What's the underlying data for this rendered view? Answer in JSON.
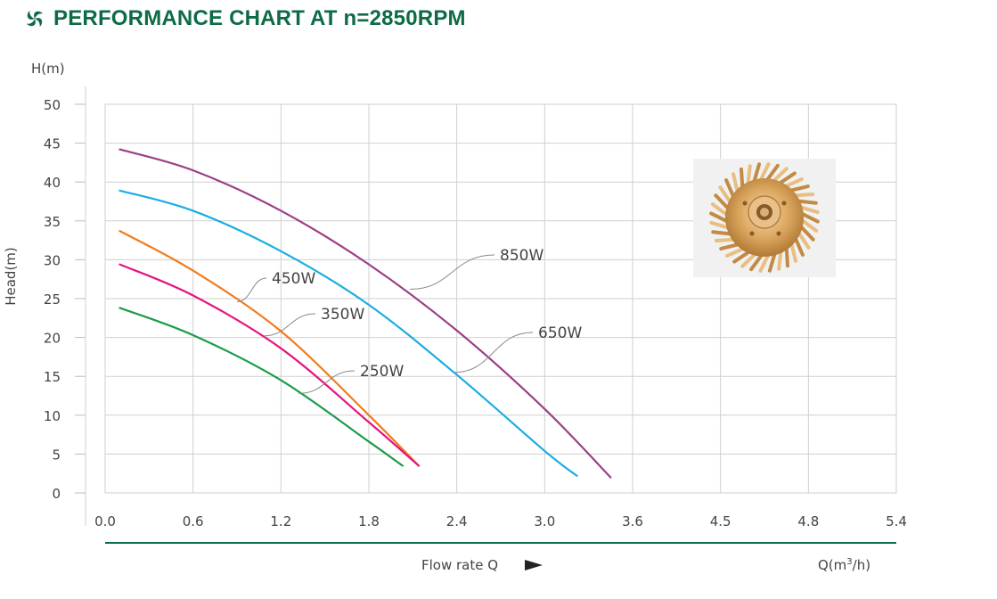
{
  "header": {
    "title": "PERFORMANCE CHART AT n=2850RPM",
    "logo_icon": "impeller-swirl-icon",
    "color": "#0d6b45"
  },
  "chart_data": {
    "type": "line",
    "title": "PERFORMANCE CHART AT n=2850RPM",
    "y_unit_label": "H(m)",
    "ylabel": "Head(m)",
    "xlabel": "Flow rate Q",
    "x_unit_label": "Q(m³/h)",
    "y_ticks": [
      "0",
      "5",
      "10",
      "15",
      "20",
      "25",
      "30",
      "35",
      "40",
      "45",
      "50"
    ],
    "x_ticks": [
      "0.0",
      "0.6",
      "1.2",
      "1.8",
      "2.4",
      "3.0",
      "3.6",
      "4.5",
      "4.8",
      "5.4"
    ],
    "ylim": [
      0,
      50
    ],
    "grid": true,
    "series": [
      {
        "name": "850W",
        "color": "#9b3f86",
        "x": [
          0.1,
          0.6,
          1.2,
          1.8,
          2.4,
          3.0,
          3.45
        ],
        "y": [
          44.2,
          41.5,
          36.3,
          29.4,
          20.9,
          10.8,
          2.0
        ]
      },
      {
        "name": "650W",
        "color": "#1aade4",
        "x": [
          0.1,
          0.6,
          1.2,
          1.8,
          2.4,
          3.0,
          3.22
        ],
        "y": [
          38.9,
          36.3,
          31.1,
          24.2,
          15.2,
          5.4,
          2.2
        ]
      },
      {
        "name": "450W",
        "color": "#f07c1c",
        "x": [
          0.1,
          0.6,
          1.2,
          1.8,
          2.14
        ],
        "y": [
          33.7,
          28.6,
          20.8,
          10.0,
          3.5
        ]
      },
      {
        "name": "350W",
        "color": "#e5157f",
        "x": [
          0.1,
          0.6,
          1.2,
          1.8,
          2.14
        ],
        "y": [
          29.4,
          25.4,
          18.6,
          9.1,
          3.5
        ]
      },
      {
        "name": "250W",
        "color": "#1c9b4a",
        "x": [
          0.1,
          0.6,
          1.2,
          1.8,
          2.03
        ],
        "y": [
          23.8,
          20.3,
          14.5,
          6.6,
          3.5
        ]
      }
    ],
    "labels": [
      {
        "text": "850W",
        "series": "850W"
      },
      {
        "text": "650W",
        "series": "650W"
      },
      {
        "text": "450W",
        "series": "450W"
      },
      {
        "text": "350W",
        "series": "350W"
      },
      {
        "text": "250W",
        "series": "250W"
      }
    ]
  },
  "image": {
    "name": "brass-impeller-photo"
  }
}
